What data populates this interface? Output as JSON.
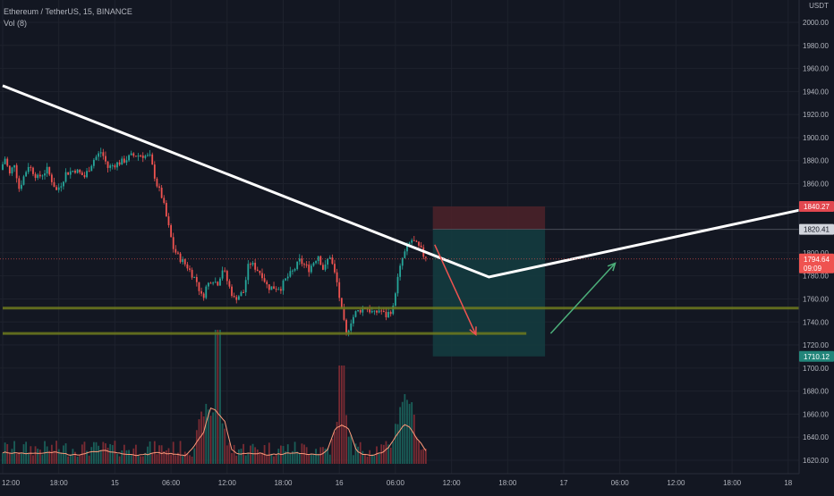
{
  "chart_header": {
    "symbol_line": "Ethereum / TetherUS, 15, BINANCE",
    "volume_label": "Vol (8)",
    "currency": "USDT"
  },
  "colors": {
    "background": "#131722",
    "grid": "#1e222d",
    "up": "#26a69a",
    "down": "#ef5350",
    "up_volume": "#1a5e58",
    "down_volume": "#7a2b33",
    "trend_line": "#ffffff",
    "support_line": "#6e7a1e",
    "stop_zone": "#4a2129",
    "target_zone": "#143b3f",
    "down_arrow": "#ef5350",
    "up_arrow": "#4caf7a",
    "ma_line": "#ff9a7a"
  },
  "chart_data": {
    "type": "candlestick",
    "y_axis": {
      "min": 1610,
      "max": 2010,
      "ticks": [
        2000,
        1980,
        1960,
        1940,
        1920,
        1900,
        1880,
        1860,
        1840,
        1820,
        1800,
        1780,
        1760,
        1740,
        1720,
        1700,
        1680,
        1660,
        1640,
        1620
      ],
      "tick_labels": [
        "2000.00",
        "1980.00",
        "1960.00",
        "1940.00",
        "1920.00",
        "1900.00",
        "1880.00",
        "1860.00",
        "1840.00",
        "1820.00",
        "1800.00",
        "1780.00",
        "1760.00",
        "1740.00",
        "1720.00",
        "1700.00",
        "1680.00",
        "1660.00",
        "1640.00",
        "1620.00"
      ]
    },
    "x_axis": {
      "tick_labels": [
        "12:00",
        "18:00",
        "15",
        "06:00",
        "12:00",
        "18:00",
        "16",
        "06:00",
        "12:00",
        "18:00",
        "17",
        "06:00",
        "12:00",
        "18:00",
        "18"
      ],
      "tick_hours": [
        12,
        18,
        24,
        30,
        36,
        42,
        48,
        54,
        60,
        66,
        72,
        78,
        84,
        90,
        96
      ]
    },
    "price_path": [
      [
        12.0,
        1872
      ],
      [
        12.5,
        1882
      ],
      [
        13.0,
        1868
      ],
      [
        13.5,
        1878
      ],
      [
        14.0,
        1856
      ],
      [
        15.0,
        1876
      ],
      [
        16.0,
        1865
      ],
      [
        17.0,
        1872
      ],
      [
        18.0,
        1854
      ],
      [
        18.5,
        1860
      ],
      [
        19.0,
        1869
      ],
      [
        20.0,
        1872
      ],
      [
        21.0,
        1866
      ],
      [
        22.0,
        1881
      ],
      [
        22.8,
        1888
      ],
      [
        23.5,
        1874
      ],
      [
        24.3,
        1877
      ],
      [
        25.0,
        1879
      ],
      [
        26.0,
        1884
      ],
      [
        27.0,
        1885
      ],
      [
        28.0,
        1883
      ],
      [
        28.7,
        1860
      ],
      [
        29.3,
        1848
      ],
      [
        30.0,
        1822
      ],
      [
        30.5,
        1804
      ],
      [
        31.0,
        1797
      ],
      [
        32.0,
        1788
      ],
      [
        33.0,
        1775
      ],
      [
        33.6,
        1760
      ],
      [
        34.0,
        1770
      ],
      [
        34.6,
        1778
      ],
      [
        35.2,
        1773
      ],
      [
        35.8,
        1787
      ],
      [
        36.4,
        1772
      ],
      [
        37.0,
        1760
      ],
      [
        38.0,
        1766
      ],
      [
        38.6,
        1792
      ],
      [
        39.3,
        1787
      ],
      [
        40.0,
        1781
      ],
      [
        40.6,
        1770
      ],
      [
        41.4,
        1770
      ],
      [
        42.0,
        1770
      ],
      [
        42.6,
        1778
      ],
      [
        43.3,
        1784
      ],
      [
        44.0,
        1793
      ],
      [
        45.0,
        1786
      ],
      [
        46.0,
        1798
      ],
      [
        46.6,
        1784
      ],
      [
        47.2,
        1799
      ],
      [
        48.0,
        1774
      ],
      [
        48.5,
        1749
      ],
      [
        49.0,
        1729
      ],
      [
        49.5,
        1741
      ],
      [
        50.0,
        1748
      ],
      [
        51.0,
        1753
      ],
      [
        52.0,
        1747
      ],
      [
        52.6,
        1751
      ],
      [
        53.2,
        1745
      ],
      [
        54.0,
        1752
      ],
      [
        54.3,
        1770
      ],
      [
        54.7,
        1785
      ],
      [
        55.0,
        1795
      ],
      [
        55.5,
        1805
      ],
      [
        56.0,
        1811
      ],
      [
        56.6,
        1806
      ],
      [
        57.0,
        1802
      ],
      [
        57.3,
        1797
      ]
    ],
    "volume_axis_ref": 1620,
    "volume_spikes_hours": [
      33.6,
      35.0,
      48.3,
      54.6,
      55.6
    ],
    "last_price": 1794.64,
    "last_price_label": "1794.64",
    "countdown_label": "09:09",
    "drawings": {
      "trend_line": [
        [
          12.0,
          1945
        ],
        [
          64.0,
          1779
        ],
        [
          97.5,
          1837
        ]
      ],
      "support_lines": [
        {
          "price": 1752,
          "from_hour": 12.0,
          "to_hour": 97.5
        },
        {
          "price": 1730,
          "from_hour": 12.0,
          "to_hour": 68.0
        }
      ],
      "position": {
        "entry": 1820.41,
        "stop": 1840.27,
        "target": 1710.12,
        "entry_label": "1820.41",
        "stop_label": "1840.27",
        "target_label": "1710.12",
        "from_hour": 58.0,
        "to_hour": 70.0
      },
      "down_arrow": [
        [
          58.2,
          1807
        ],
        [
          62.6,
          1729
        ]
      ],
      "up_arrow": [
        [
          70.6,
          1730
        ],
        [
          77.5,
          1791
        ]
      ]
    }
  }
}
